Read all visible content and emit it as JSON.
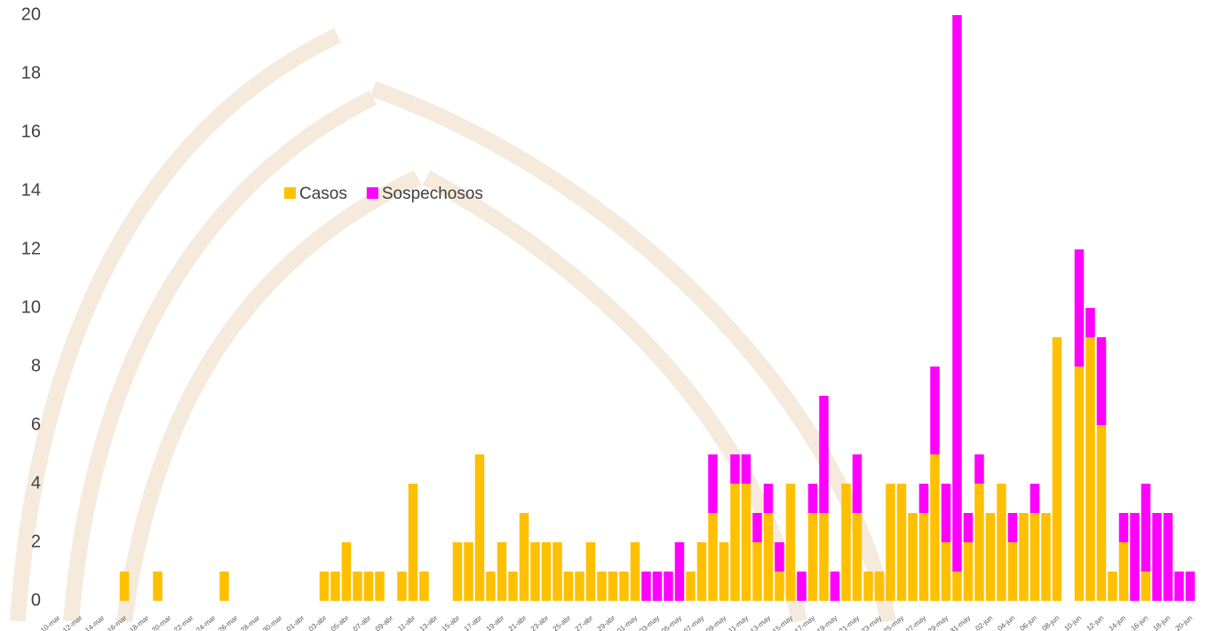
{
  "chart_data": {
    "type": "stacked_bar",
    "categories": [
      "10-mar",
      null,
      "12-mar",
      null,
      "14-mar",
      null,
      "16-mar",
      null,
      "18-mar",
      null,
      "20-mar",
      null,
      "22-mar",
      null,
      "24-mar",
      null,
      "26-mar",
      null,
      "28-mar",
      null,
      "30-mar",
      null,
      "01-abr",
      null,
      "03-abr",
      null,
      "05-abr",
      null,
      "07-abr",
      null,
      "09-abr",
      null,
      "11-abr",
      null,
      "13-abr",
      null,
      "15-abr",
      null,
      "17-abr",
      null,
      "19-abr",
      null,
      "21-abr",
      null,
      "23-abr",
      null,
      "25-abr",
      null,
      "27-abr",
      null,
      "29-abr",
      null,
      "01-may",
      null,
      "03-may",
      null,
      "05-may",
      null,
      "07-may",
      null,
      "09-may",
      null,
      "11-may",
      null,
      "13-may",
      null,
      "15-may",
      null,
      "17-may",
      null,
      "19-may",
      null,
      "21-may",
      null,
      "23-may",
      null,
      "25-may",
      null,
      "27-may",
      null,
      "29-may",
      null,
      "31-may",
      null,
      "02-jun",
      null,
      "04-jun",
      null,
      "06-jun",
      null,
      "08-jun",
      null,
      "10-jun",
      null,
      "12-jun",
      null,
      "14-jun",
      null,
      "16-jun",
      null,
      "18-jun",
      null,
      "20-jun"
    ],
    "series": [
      {
        "name": "Casos",
        "color": "#FFC000",
        "values": [
          0,
          0,
          0,
          0,
          0,
          0,
          1,
          0,
          0,
          1,
          0,
          0,
          0,
          0,
          0,
          1,
          0,
          0,
          0,
          0,
          0,
          0,
          0,
          0,
          1,
          1,
          2,
          1,
          1,
          1,
          0,
          1,
          4,
          1,
          0,
          0,
          2,
          2,
          5,
          1,
          2,
          1,
          3,
          2,
          2,
          2,
          1,
          1,
          2,
          1,
          1,
          1,
          2,
          0,
          0,
          0,
          0,
          1,
          2,
          3,
          2,
          4,
          4,
          2,
          3,
          1,
          4,
          0,
          3,
          3,
          0,
          4,
          3,
          1,
          1,
          4,
          4,
          3,
          3,
          5,
          2,
          1,
          2,
          4,
          3,
          4,
          2,
          3,
          3,
          3,
          9,
          0,
          8,
          9,
          6,
          1,
          2,
          0,
          1,
          0,
          0,
          0,
          0
        ]
      },
      {
        "name": "Sospechosos",
        "color": "#FF00FF",
        "values": [
          0,
          0,
          0,
          0,
          0,
          0,
          0,
          0,
          0,
          0,
          0,
          0,
          0,
          0,
          0,
          0,
          0,
          0,
          0,
          0,
          0,
          0,
          0,
          0,
          0,
          0,
          0,
          0,
          0,
          0,
          0,
          0,
          0,
          0,
          0,
          0,
          0,
          0,
          0,
          0,
          0,
          0,
          0,
          0,
          0,
          0,
          0,
          0,
          0,
          0,
          0,
          0,
          0,
          1,
          1,
          1,
          2,
          0,
          0,
          2,
          0,
          1,
          1,
          1,
          1,
          1,
          0,
          1,
          1,
          4,
          1,
          0,
          2,
          0,
          0,
          0,
          0,
          0,
          1,
          3,
          2,
          19,
          1,
          1,
          0,
          0,
          1,
          0,
          1,
          0,
          0,
          0,
          4,
          1,
          3,
          0,
          1,
          3,
          3,
          3,
          3,
          1,
          1
        ]
      }
    ],
    "ylim": [
      0,
      20
    ],
    "yticks": [
      0,
      2,
      4,
      6,
      8,
      10,
      12,
      14,
      16,
      18,
      20
    ]
  }
}
